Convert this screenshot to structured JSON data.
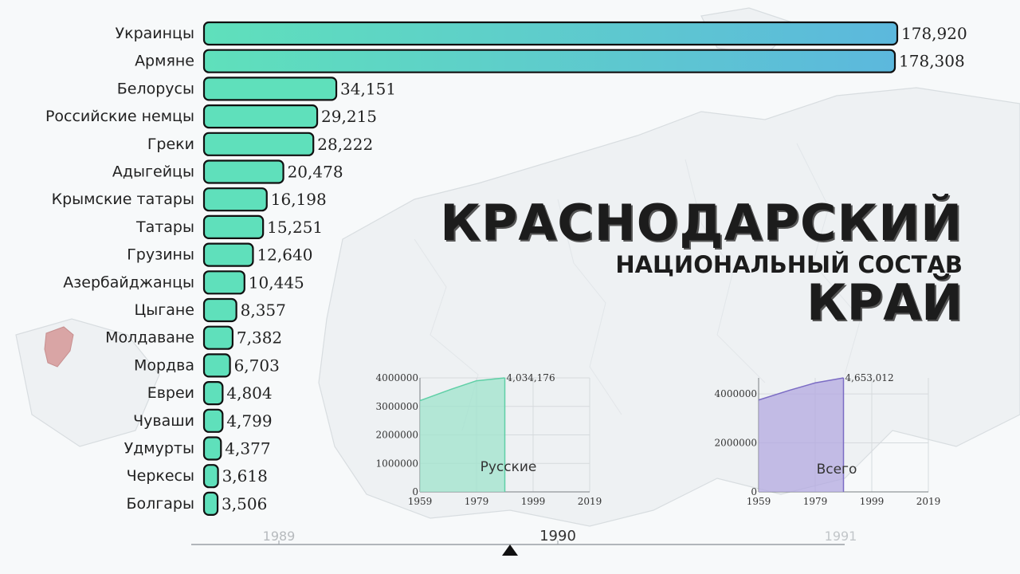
{
  "title": {
    "line1": "КРАСНОДАРСКИЙ",
    "subtitle": "НАЦИОНАЛЬНЫЙ СОСТАВ",
    "line2": "КРАЙ"
  },
  "colors": {
    "bar_fill": "#5fe0bb",
    "bar_fill_blue": "#5cb8dd",
    "bar_stroke": "#111111",
    "russian_area": "#9fe3cc",
    "total_area": "#b3a8e0",
    "region": "#d9a5a5"
  },
  "chart_data": [
    {
      "type": "bar",
      "orientation": "horizontal",
      "year": "1990",
      "categories": [
        "Украинцы",
        "Армяне",
        "Белорусы",
        "Российские немцы",
        "Греки",
        "Адыгейцы",
        "Крымские татары",
        "Татары",
        "Грузины",
        "Азербайджанцы",
        "Цыгане",
        "Молдаване",
        "Мордва",
        "Евреи",
        "Чуваши",
        "Удмурты",
        "Черкесы",
        "Болгары"
      ],
      "values": [
        178920,
        178308,
        34151,
        29215,
        28222,
        20478,
        16198,
        15251,
        12640,
        10445,
        8357,
        7382,
        6703,
        4804,
        4799,
        4377,
        3618,
        3506
      ],
      "value_labels": [
        "178,920",
        "178,308",
        "34,151",
        "29,215",
        "28,222",
        "20,478",
        "16,198",
        "15,251",
        "12,640",
        "10,445",
        "8,357",
        "7,382",
        "6,703",
        "4,804",
        "4,799",
        "4,377",
        "3,618",
        "3,506"
      ]
    },
    {
      "type": "area",
      "label": "Русские",
      "x": [
        1959,
        1970,
        1979,
        1989
      ],
      "y": [
        3200000,
        3600000,
        3900000,
        4034176
      ],
      "end_label": "4,034,176",
      "xticks": [
        "1959",
        "1979",
        "1999",
        "2019"
      ],
      "yticks": [
        "0",
        "1000000",
        "2000000",
        "3000000",
        "4000000"
      ],
      "xlim": [
        1959,
        2019
      ],
      "ylim": [
        0,
        4000000
      ]
    },
    {
      "type": "area",
      "label": "Всего",
      "x": [
        1959,
        1970,
        1979,
        1989
      ],
      "y": [
        3750000,
        4150000,
        4450000,
        4653012
      ],
      "end_label": "4,653,012",
      "xticks": [
        "1959",
        "1979",
        "1999",
        "2019"
      ],
      "yticks": [
        "0",
        "2000000",
        "4000000"
      ],
      "xlim": [
        1959,
        2019
      ],
      "ylim": [
        0,
        4653012
      ]
    }
  ],
  "timeline": {
    "prev": "1989",
    "current": "1990",
    "next": "1991"
  }
}
